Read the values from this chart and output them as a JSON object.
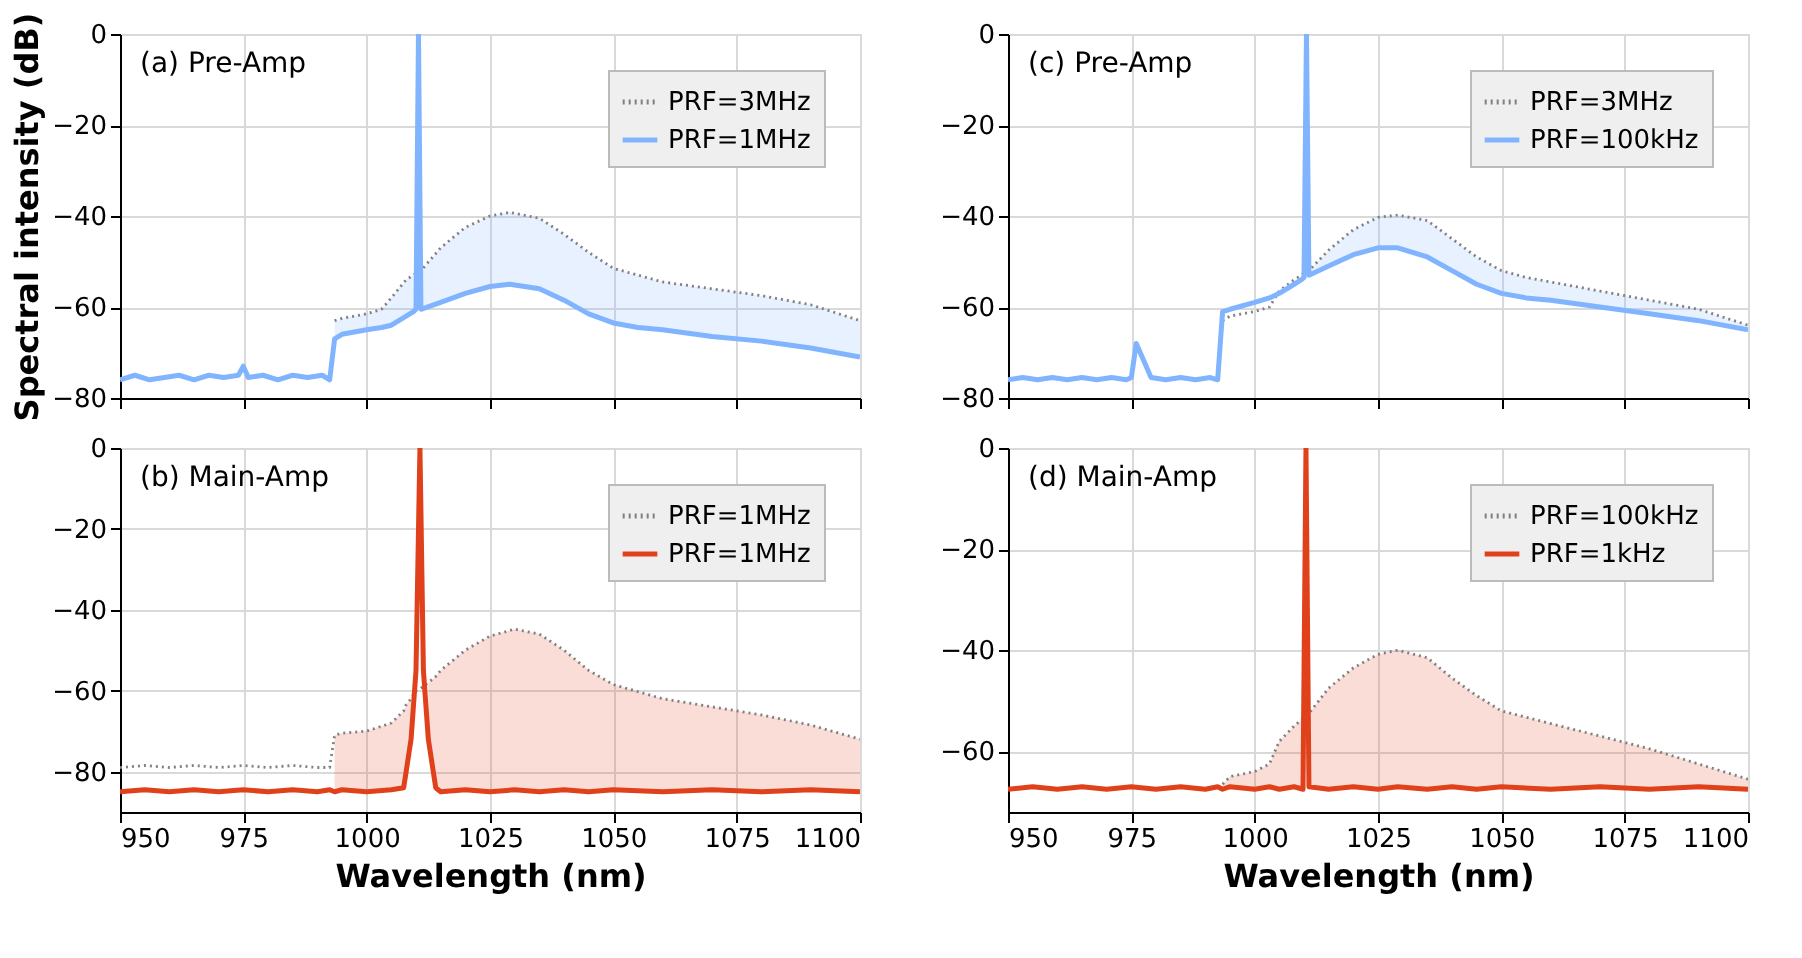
{
  "chart_data": [
    {
      "type": "line",
      "title": "(a) Pre-Amp",
      "ylabel": "Spectral intensity (dB)",
      "xlim": [
        950,
        1100
      ],
      "xticks": [
        950,
        975,
        1000,
        1025,
        1050,
        1075,
        1100
      ],
      "ylim": [
        -80,
        0
      ],
      "yticks": [
        -80,
        -60,
        -40,
        -20,
        0
      ],
      "grid": true,
      "legend": "top right",
      "tick_labels": "y",
      "x": [
        950,
        953,
        956,
        959,
        962,
        965,
        968,
        971,
        974,
        975,
        976,
        979,
        982,
        985,
        988,
        991,
        992.5,
        993.5,
        995,
        1000,
        1003,
        1005,
        1008,
        1009.5,
        1010,
        1010.5,
        1011,
        1015,
        1020,
        1025,
        1029,
        1035,
        1040,
        1045,
        1050,
        1055,
        1060,
        1070,
        1080,
        1090,
        1100
      ],
      "series": [
        {
          "name": "PRF=3MHz",
          "color": "#808080",
          "line_style": "dotted",
          "values": [
            null,
            null,
            null,
            null,
            null,
            null,
            null,
            null,
            null,
            null,
            null,
            null,
            null,
            null,
            null,
            null,
            null,
            -63,
            -62.5,
            -61.5,
            -60.5,
            -58,
            -54,
            -53,
            -52.5,
            -52.3,
            -52,
            -47,
            -42.5,
            -40,
            -39.2,
            -40.5,
            -44,
            -48,
            -51.5,
            -53,
            -54.5,
            -56,
            -57.5,
            -59.5,
            -63
          ]
        },
        {
          "name": "PRF=1MHz",
          "color": "#80b4ff",
          "line_style": "solid",
          "values": [
            -76,
            -75,
            -76,
            -75.5,
            -75,
            -76,
            -75,
            -75.5,
            -75,
            -73,
            -75.5,
            -75,
            -76,
            -75,
            -75.5,
            -75,
            -76,
            -67,
            -66,
            -65,
            -64.5,
            -64,
            -62,
            -61,
            -60.5,
            0,
            -60.5,
            -59,
            -57,
            -55.5,
            -55,
            -56,
            -58.5,
            -61.5,
            -63.5,
            -64.5,
            -65,
            -66.5,
            -67.5,
            -69,
            -71
          ],
          "lower": [
            null,
            null,
            null,
            null,
            null,
            null,
            null,
            null,
            null,
            null,
            null,
            null,
            null,
            null,
            null,
            null,
            null,
            -67,
            -66,
            -65,
            -64.5,
            -64,
            -62,
            -61,
            -60.5,
            null,
            -60.5,
            -59,
            -57,
            -55.5,
            -55,
            -56,
            -58.5,
            -61.5,
            -63.5,
            -64.5,
            -65,
            -66.5,
            -67.5,
            -69,
            -71
          ],
          "upper": [
            null,
            null,
            null,
            null,
            null,
            null,
            null,
            null,
            null,
            null,
            null,
            null,
            null,
            null,
            null,
            null,
            null,
            -63,
            -62.5,
            -61.5,
            -60.5,
            -58,
            -54,
            -53,
            -52.5,
            null,
            -52,
            -47,
            -42.5,
            -40,
            -39.2,
            -40.5,
            -44,
            -48,
            -51.5,
            -53,
            -54.5,
            -56,
            -57.5,
            -59.5,
            -63
          ]
        }
      ]
    },
    {
      "type": "line",
      "title": "(c) Pre-Amp",
      "xlim": [
        950,
        1100
      ],
      "xticks": [
        950,
        975,
        1000,
        1025,
        1050,
        1075,
        1100
      ],
      "ylim": [
        -80,
        0
      ],
      "yticks": [
        -80,
        -60,
        -40,
        -20,
        0
      ],
      "grid": true,
      "legend": "top right",
      "tick_labels": "y",
      "x": [
        950,
        953,
        956,
        959,
        962,
        965,
        968,
        971,
        974,
        975,
        976,
        979,
        982,
        985,
        988,
        991,
        992.5,
        993.5,
        995,
        1000,
        1003,
        1005,
        1008,
        1009.5,
        1010,
        1010.5,
        1011,
        1015,
        1020,
        1025,
        1029,
        1035,
        1040,
        1045,
        1050,
        1055,
        1060,
        1070,
        1080,
        1090,
        1100
      ],
      "series": [
        {
          "name": "PRF=3MHz",
          "color": "#808080",
          "line_style": "dotted",
          "values": [
            null,
            null,
            null,
            null,
            null,
            null,
            null,
            null,
            null,
            null,
            null,
            null,
            null,
            null,
            null,
            null,
            null,
            -63,
            -62,
            -61,
            -60,
            -56.5,
            -54,
            -53,
            -52.5,
            -52.3,
            -52,
            -47.5,
            -43,
            -40.3,
            -39.8,
            -41,
            -45,
            -49,
            -52,
            -53.5,
            -54.5,
            -56.5,
            -58.5,
            -60.5,
            -64
          ]
        },
        {
          "name": "PRF=100kHz",
          "color": "#80b4ff",
          "line_style": "solid",
          "values": [
            -76,
            -75.5,
            -76,
            -75.5,
            -76,
            -75.5,
            -76,
            -75.5,
            -76,
            -75.5,
            -68,
            -75.5,
            -76,
            -75.5,
            -76,
            -75.5,
            -76,
            -61,
            -60.5,
            -59,
            -58,
            -57,
            -55,
            -54,
            -53.5,
            0,
            -53,
            -51,
            -48.5,
            -47,
            -47,
            -49,
            -52,
            -55,
            -57,
            -58,
            -58.5,
            -60,
            -61.5,
            -63,
            -65
          ],
          "lower": [
            null,
            null,
            null,
            null,
            null,
            null,
            null,
            null,
            null,
            null,
            null,
            null,
            null,
            null,
            null,
            null,
            null,
            null,
            null,
            null,
            null,
            null,
            null,
            null,
            null,
            null,
            -53,
            -51,
            -48.5,
            -47,
            -47,
            -49,
            -52,
            -55,
            -57,
            -58,
            -58.5,
            -60,
            -61.5,
            -63,
            -65
          ],
          "upper": [
            null,
            null,
            null,
            null,
            null,
            null,
            null,
            null,
            null,
            null,
            null,
            null,
            null,
            null,
            null,
            null,
            null,
            null,
            null,
            null,
            null,
            null,
            null,
            null,
            null,
            null,
            -52,
            -47.5,
            -43,
            -40.3,
            -39.8,
            -41,
            -45,
            -49,
            -52,
            -53.5,
            -54.5,
            -56.5,
            -58.5,
            -60.5,
            -64
          ]
        }
      ]
    },
    {
      "type": "line",
      "title": "(b) Main-Amp",
      "xlabel": "Wavelength (nm)",
      "xlim": [
        950,
        1100
      ],
      "xticks": [
        950,
        975,
        1000,
        1025,
        1050,
        1075,
        1100
      ],
      "ylim": [
        -90,
        0
      ],
      "yticks": [
        -80,
        -60,
        -40,
        -20,
        0
      ],
      "grid": true,
      "legend": "top right",
      "x": [
        950,
        955,
        960,
        965,
        970,
        975,
        980,
        985,
        990,
        992.5,
        993.5,
        995,
        1000,
        1005,
        1007.5,
        1008,
        1009,
        1010,
        1010.8,
        1011.5,
        1012.5,
        1013.5,
        1014,
        1015,
        1020,
        1025,
        1030,
        1035,
        1040,
        1045,
        1050,
        1060,
        1070,
        1080,
        1090,
        1100
      ],
      "series": [
        {
          "name": "PRF=1MHz",
          "color": "#808080",
          "line_style": "dotted",
          "values": [
            -79,
            -78.5,
            -79,
            -78.5,
            -79,
            -78.5,
            -79,
            -78.5,
            -79,
            -79,
            -71,
            -70.5,
            -70,
            -68,
            -65,
            -63.5,
            -62,
            -60,
            -59.5,
            -59,
            -58,
            -57,
            -56.5,
            -55,
            -50,
            -46.5,
            -44.8,
            -46,
            -50,
            -55,
            -58.5,
            -62,
            -64,
            -66,
            -68.5,
            -72
          ]
        },
        {
          "name": "PRF=1MHz",
          "color": "#e0401a",
          "line_style": "solid",
          "values": [
            -85,
            -84.5,
            -85,
            -84.5,
            -85,
            -84.5,
            -85,
            -84.5,
            -85,
            -84.5,
            -85,
            -84.5,
            -85,
            -84.5,
            -84,
            -80,
            -72,
            -55,
            0,
            -55,
            -72,
            -80,
            -84,
            -85,
            -84.5,
            -85,
            -84.5,
            -85,
            -84.5,
            -85,
            -84.5,
            -85,
            -84.5,
            -85,
            -84.5,
            -85
          ],
          "lower": [
            null,
            null,
            null,
            null,
            null,
            null,
            null,
            null,
            null,
            null,
            -85,
            -84.5,
            -85,
            -84.5,
            -84,
            -80,
            -72,
            null,
            null,
            null,
            -72,
            -80,
            -84,
            -85,
            -84.5,
            -85,
            -84.5,
            -85,
            -84.5,
            -85,
            -84.5,
            -85,
            -84.5,
            -85,
            -84.5,
            -85
          ],
          "upper": [
            null,
            null,
            null,
            null,
            null,
            null,
            null,
            null,
            null,
            null,
            -71,
            -70.5,
            -70,
            -68,
            -65,
            -63.5,
            -62,
            null,
            null,
            null,
            -58,
            -57,
            -56.5,
            -55,
            -50,
            -46.5,
            -44.8,
            -46,
            -50,
            -55,
            -58.5,
            -62,
            -64,
            -66,
            -68.5,
            -72
          ]
        }
      ]
    },
    {
      "type": "line",
      "title": "(d) Main-Amp",
      "xlabel": "Wavelength (nm)",
      "xlim": [
        950,
        1100
      ],
      "xticks": [
        950,
        975,
        1000,
        1025,
        1050,
        1075,
        1100
      ],
      "ylim": [
        -72,
        0
      ],
      "yticks": [
        -60,
        -40,
        -20,
        0
      ],
      "grid": true,
      "legend": "top right",
      "x": [
        950,
        955,
        960,
        965,
        970,
        975,
        980,
        985,
        990,
        992.5,
        993.5,
        995,
        1000,
        1003,
        1005,
        1008,
        1009.8,
        1010.4,
        1011,
        1015,
        1020,
        1025,
        1029,
        1035,
        1040,
        1045,
        1050,
        1060,
        1070,
        1080,
        1090,
        1100
      ],
      "series": [
        {
          "name": "PRF=100kHz",
          "color": "#808080",
          "line_style": "dotted",
          "values": [
            null,
            null,
            null,
            null,
            null,
            null,
            null,
            null,
            null,
            null,
            -66.5,
            -65,
            -64,
            -62.5,
            -58,
            -55,
            -53.5,
            -53,
            -52.5,
            -47.5,
            -43.5,
            -40.8,
            -40,
            -41.5,
            -45.5,
            -49,
            -52,
            -54.5,
            -57,
            -59.5,
            -62.5,
            -65.5
          ]
        },
        {
          "name": "PRF=1kHz",
          "color": "#e0401a",
          "line_style": "solid",
          "values": [
            -67.5,
            -67,
            -67.5,
            -67,
            -67.5,
            -67,
            -67.5,
            -67,
            -67.5,
            -67,
            -67.5,
            -67,
            -67.5,
            -67,
            -67.5,
            -67,
            -67.5,
            0,
            -67,
            -67.5,
            -67,
            -67.5,
            -67,
            -67.5,
            -67,
            -67.5,
            -67,
            -67.5,
            -67,
            -67.5,
            -67,
            -67.5
          ],
          "lower": [
            null,
            null,
            null,
            null,
            null,
            null,
            null,
            null,
            null,
            null,
            -67.5,
            -67,
            -67.5,
            -67,
            -67.5,
            -67,
            -67.5,
            null,
            -67,
            -67.5,
            -67,
            -67.5,
            -67,
            -67.5,
            -67,
            -67.5,
            -67,
            -67.5,
            -67,
            -67.5,
            -67,
            -67.5
          ],
          "upper": [
            null,
            null,
            null,
            null,
            null,
            null,
            null,
            null,
            null,
            null,
            -66.5,
            -65,
            -64,
            -62.5,
            -58,
            -55,
            -53.5,
            null,
            -52.5,
            -47.5,
            -43.5,
            -40.8,
            -40,
            -41.5,
            -45.5,
            -49,
            -52,
            -54.5,
            -57,
            -59.5,
            -62.5,
            -65.5
          ]
        }
      ]
    }
  ]
}
